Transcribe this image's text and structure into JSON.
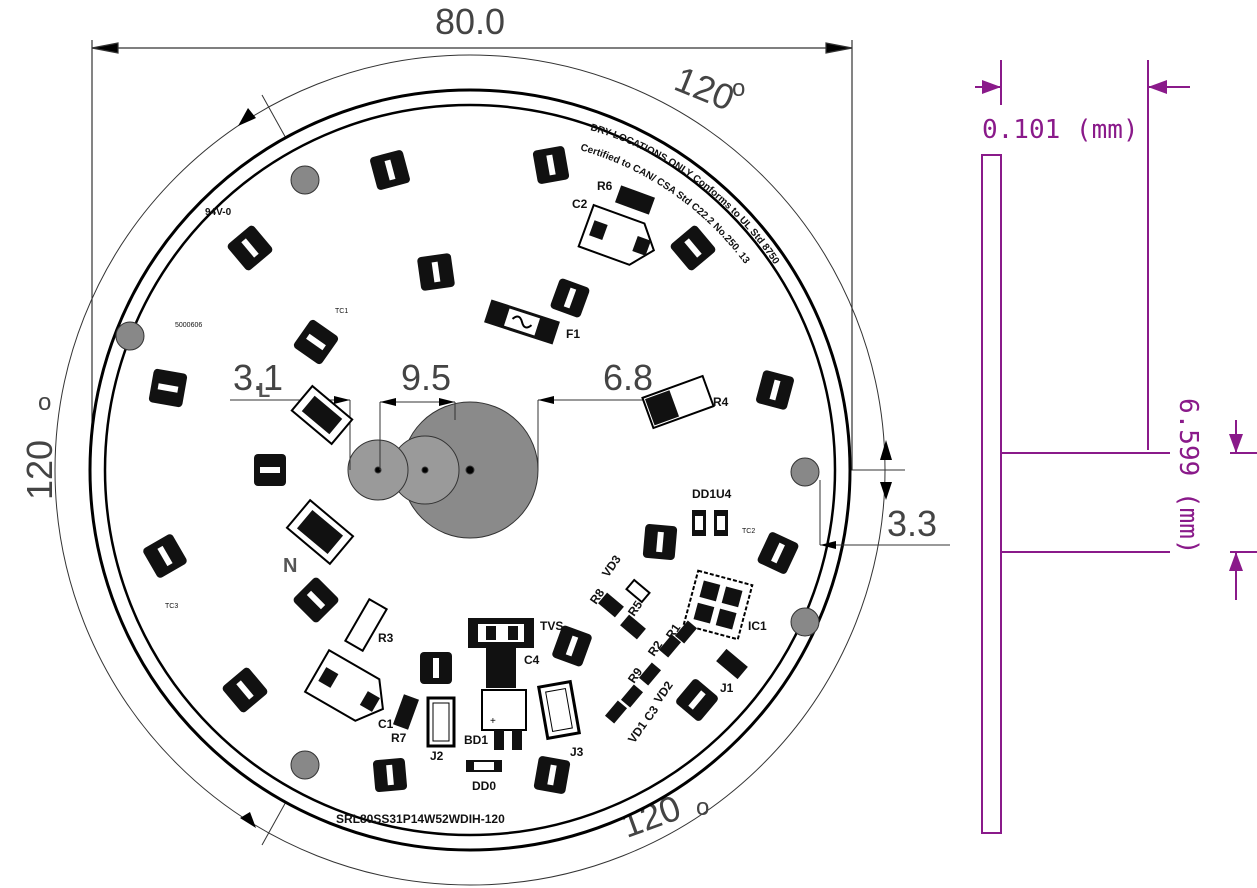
{
  "colors": {
    "accent": "#8a1a8a",
    "dimension": "#444444",
    "board": "#000000"
  },
  "dimensions": {
    "width": "80.0",
    "angle_top": "120",
    "angle_left": "120",
    "angle_bottom": "120",
    "d1": "3.1",
    "d2": "9.5",
    "d3": "6.8",
    "d4": "3.3"
  },
  "side_view": {
    "thickness": "0.101  (mm)",
    "height": "6.599  (mm)"
  },
  "board_text": {
    "line1": "DRY LOCATIONS ONLY Conforms to UL Std 8750",
    "line2": "Certified to CAN/ CSA Std C22.2 No.250. 13",
    "model": "SRL80SS31P14W52WDIH-120",
    "rating": "94V-0",
    "code": "5000606"
  },
  "designators": {
    "R6": "R6",
    "C2": "C2",
    "F1": "F1",
    "R4": "R4",
    "TC1": "TC1",
    "TC2": "TC2",
    "TC3": "TC3",
    "L": "L",
    "N": "N",
    "DD1": "DD1",
    "U4": "U4",
    "VD3": "VD3",
    "R8": "R8",
    "R5": "R5",
    "TVS": "TVS",
    "IC1": "IC1",
    "R1": "R1",
    "R2": "R2",
    "R9": "R9",
    "VD2": "VD2",
    "VD1": "VD1",
    "C3": "C3",
    "J1": "J1",
    "C4": "C4",
    "R3": "R3",
    "C1": "C1",
    "R7": "R7",
    "J2": "J2",
    "BD1": "BD1",
    "J3": "J3",
    "DD0": "DD0"
  }
}
